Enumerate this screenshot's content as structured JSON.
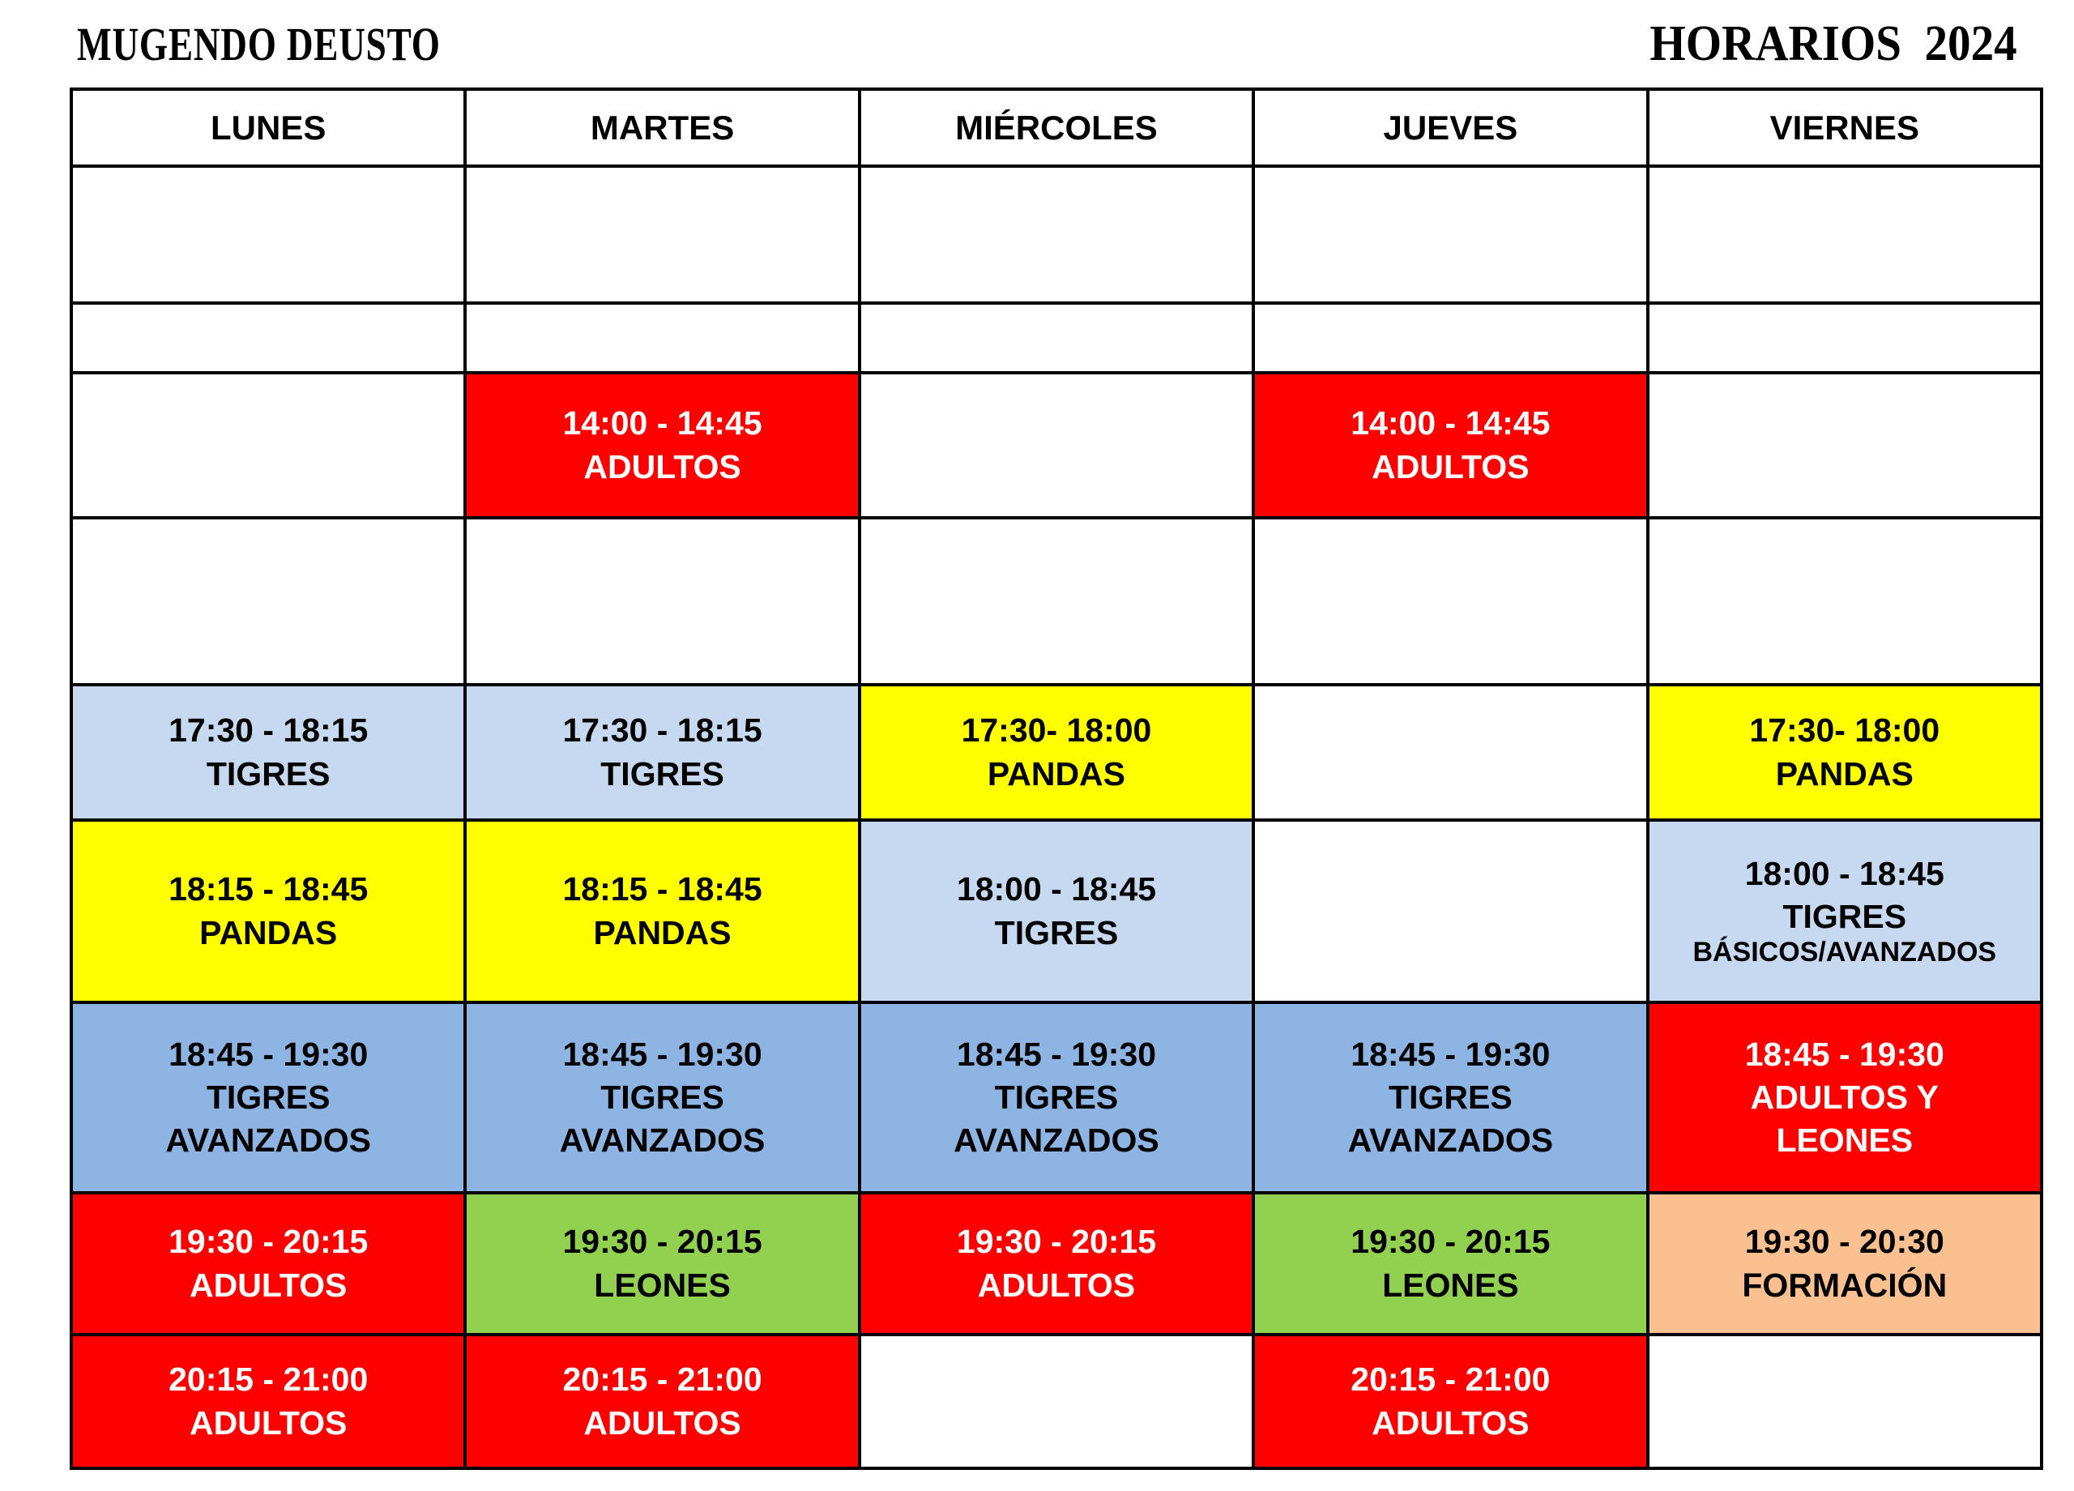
{
  "header": {
    "title_left": "MUGENDO DEUSTO",
    "title_right": "HORARIOS  2024"
  },
  "palette": {
    "red": "#fe0000",
    "yellow": "#ffff00",
    "light_blue": "#c6d9f1",
    "medium_blue": "#8db4e2",
    "green": "#92d050",
    "peach": "#fac090",
    "white": "#ffffff",
    "border": "#000000",
    "text_dark": "#000000",
    "text_light": "#ffffff"
  },
  "table": {
    "days": [
      "LUNES",
      "MARTES",
      "MIÉRCOLES",
      "JUEVES",
      "VIERNES"
    ],
    "day_keys": [
      "lunes",
      "martes",
      "miercoles",
      "jueves",
      "viernes"
    ],
    "rows": [
      {
        "name": "empty-morning-1",
        "cells": [
          null,
          null,
          null,
          null,
          null
        ]
      },
      {
        "name": "empty-morning-2",
        "cells": [
          null,
          null,
          null,
          null,
          null
        ]
      },
      {
        "name": "slot-1400",
        "cells": [
          null,
          {
            "time": "14:00 - 14:45",
            "label": "ADULTOS",
            "bg": "red",
            "fg": "light"
          },
          null,
          {
            "time": "14:00 - 14:45",
            "label": "ADULTOS",
            "bg": "red",
            "fg": "light"
          },
          null
        ]
      },
      {
        "name": "empty-afternoon",
        "cells": [
          null,
          null,
          null,
          null,
          null
        ]
      },
      {
        "name": "slot-1730",
        "cells": [
          {
            "time": "17:30 - 18:15",
            "label": "TIGRES",
            "bg": "light_blue",
            "fg": "dark"
          },
          {
            "time": "17:30 - 18:15",
            "label": "TIGRES",
            "bg": "light_blue",
            "fg": "dark"
          },
          {
            "time": "17:30- 18:00",
            "label": "PANDAS",
            "bg": "yellow",
            "fg": "dark"
          },
          null,
          {
            "time": "17:30- 18:00",
            "label": "PANDAS",
            "bg": "yellow",
            "fg": "dark"
          }
        ]
      },
      {
        "name": "slot-1815",
        "cells": [
          {
            "time": "18:15 - 18:45",
            "label": "PANDAS",
            "bg": "yellow",
            "fg": "dark"
          },
          {
            "time": "18:15 - 18:45",
            "label": "PANDAS",
            "bg": "yellow",
            "fg": "dark"
          },
          {
            "time": "18:00 - 18:45",
            "label": "TIGRES",
            "bg": "light_blue",
            "fg": "dark"
          },
          null,
          {
            "time": "18:00 - 18:45",
            "label": "TIGRES",
            "sub": "BÁSICOS/AVANZADOS",
            "bg": "light_blue",
            "fg": "dark"
          }
        ]
      },
      {
        "name": "slot-1845",
        "cells": [
          {
            "time": "18:45 - 19:30",
            "label": "TIGRES\nAVANZADOS",
            "bg": "medium_blue",
            "fg": "dark"
          },
          {
            "time": "18:45 - 19:30",
            "label": "TIGRES\nAVANZADOS",
            "bg": "medium_blue",
            "fg": "dark"
          },
          {
            "time": "18:45 - 19:30",
            "label": "TIGRES\nAVANZADOS",
            "bg": "medium_blue",
            "fg": "dark"
          },
          {
            "time": "18:45 - 19:30",
            "label": "TIGRES\nAVANZADOS",
            "bg": "medium_blue",
            "fg": "dark"
          },
          {
            "time": "18:45 - 19:30",
            "label": "ADULTOS Y\nLEONES",
            "bg": "red",
            "fg": "light"
          }
        ]
      },
      {
        "name": "slot-1930",
        "cells": [
          {
            "time": "19:30 - 20:15",
            "label": "ADULTOS",
            "bg": "red",
            "fg": "light"
          },
          {
            "time": "19:30 - 20:15",
            "label": "LEONES",
            "bg": "green",
            "fg": "dark"
          },
          {
            "time": "19:30 - 20:15",
            "label": "ADULTOS",
            "bg": "red",
            "fg": "light"
          },
          {
            "time": "19:30 - 20:15",
            "label": "LEONES",
            "bg": "green",
            "fg": "dark"
          },
          {
            "time": "19:30 - 20:30",
            "label": "FORMACIÓN",
            "bg": "peach",
            "fg": "dark"
          }
        ]
      },
      {
        "name": "slot-2015",
        "cells": [
          {
            "time": "20:15 - 21:00",
            "label": "ADULTOS",
            "bg": "red",
            "fg": "light"
          },
          {
            "time": "20:15 - 21:00",
            "label": "ADULTOS",
            "bg": "red",
            "fg": "light"
          },
          null,
          {
            "time": "20:15 - 21:00",
            "label": "ADULTOS",
            "bg": "red",
            "fg": "light"
          },
          null
        ]
      }
    ]
  }
}
